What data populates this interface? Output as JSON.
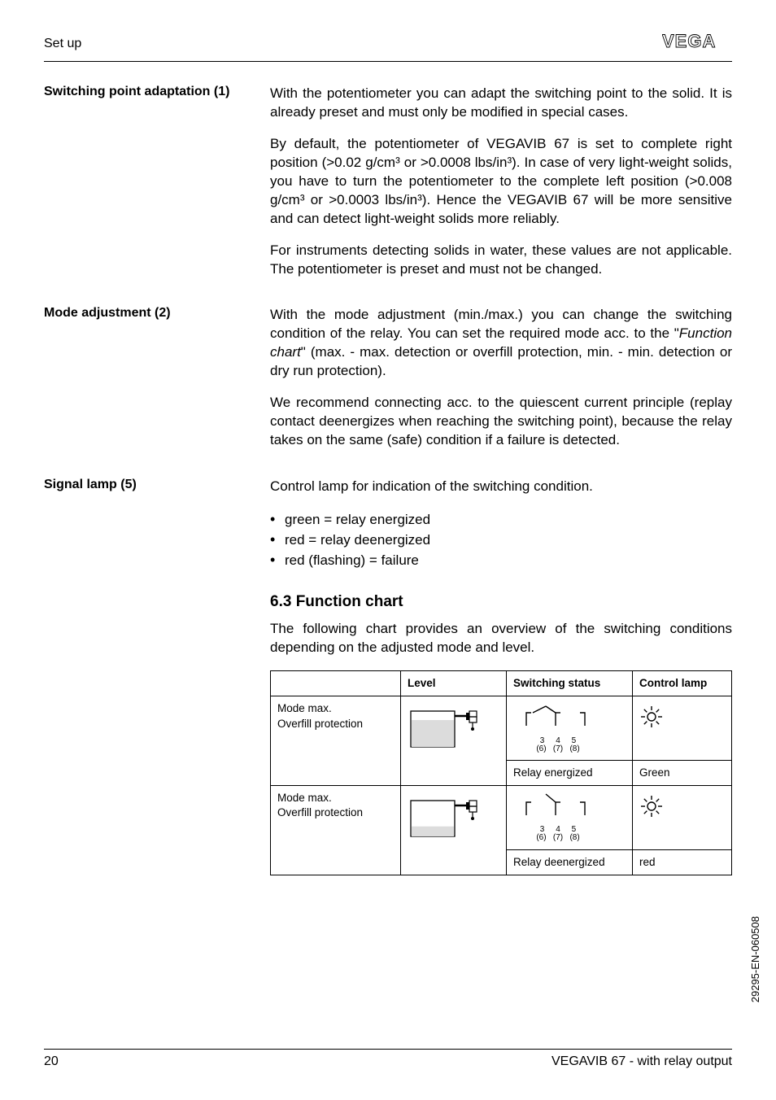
{
  "header": {
    "title": "Set up"
  },
  "sections": {
    "spa": {
      "label": "Switching point adaptation (1)",
      "p1": "With the potentiometer you can adapt the switching point to the solid. It is already preset and must only be modified in special cases.",
      "p2": "By default, the potentiometer of VEGAVIB 67 is set to complete right position (>0.02 g/cm³ or >0.0008 lbs/in³). In case of very light-weight solids, you have to turn the potentiometer to the complete left position (>0.008 g/cm³ or >0.0003 lbs/in³). Hence the VEGAVIB 67 will be more sensitive and can detect light-weight solids more reliably.",
      "p3": "For instruments detecting solids in water, these values are not applicable. The potentiometer is preset and must not be changed."
    },
    "mode": {
      "label": "Mode adjustment (2)",
      "p1_a": "With the mode adjustment (min./max.) you can change the switching condition of the relay. You can set the required mode acc. to the \"",
      "p1_i": "Function chart",
      "p1_b": "\" (max. - max. detection or overfill protection, min. - min. detection or dry run protection).",
      "p2": "We recommend connecting acc. to the quiescent current principle (replay contact deenergizes when reaching the switching point), because the relay takes on the same (safe) condition if a failure is detected."
    },
    "signal": {
      "label": "Signal lamp (5)",
      "p1": "Control lamp for indication of the switching condition.",
      "b1": "green = relay energized",
      "b2": "red = relay deenergized",
      "b3": "red (flashing) = failure"
    },
    "chart": {
      "heading": "6.3  Function chart",
      "intro": "The following chart provides an overview of the switching conditions depending on the adjusted mode and level.",
      "headers": {
        "c1": "",
        "c2": "Level",
        "c3": "Switching status",
        "c4": "Control lamp"
      },
      "rows": [
        {
          "mode_l1": "Mode max.",
          "mode_l2": "Overfill protection",
          "nums_top": "3     4     5",
          "nums_bot": "(6)   (7)   (8)",
          "status": "Relay energized",
          "lamp": "Green",
          "level_fill": 0.75,
          "closed": true
        },
        {
          "mode_l1": "Mode max.",
          "mode_l2": "Overfill protection",
          "nums_top": "3     4     5",
          "nums_bot": "(6)   (7)   (8)",
          "status": "Relay deenergized",
          "lamp": "red",
          "level_fill": 0.28,
          "closed": false
        }
      ]
    }
  },
  "footer": {
    "page": "20",
    "doc": "VEGAVIB 67 - with relay output"
  },
  "side_code": "29295-EN-060508",
  "colors": {
    "text": "#000000",
    "border": "#000000",
    "fill_gray": "#dcdcdc"
  }
}
